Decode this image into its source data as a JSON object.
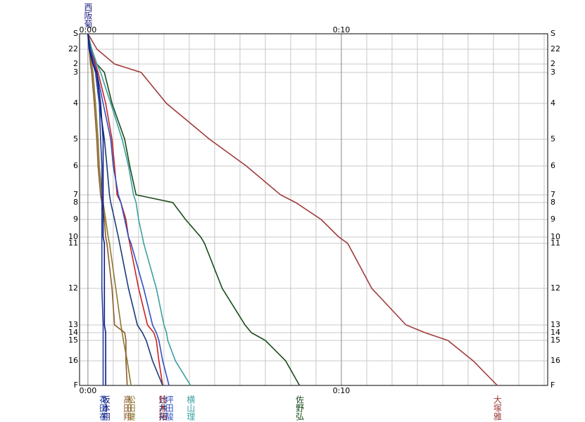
{
  "chart_data": {
    "type": "line",
    "leader": "西阪菊",
    "xlim": [
      -0.33,
      18.14
    ],
    "xticks": [
      {
        "value": 0,
        "label": "0:00"
      },
      {
        "value": 10,
        "label": "0:10"
      }
    ],
    "x_grid_step": 1,
    "ylim": [
      0,
      500
    ],
    "y_inverted": true,
    "yticks": [
      {
        "value": 0,
        "label": "S"
      },
      22,
      {
        "value": 43,
        "label": "2"
      },
      {
        "value": 55,
        "label": "3"
      },
      {
        "value": 99,
        "label": "4"
      },
      {
        "value": 150,
        "label": "5"
      },
      {
        "value": 188,
        "label": "6"
      },
      {
        "value": 229,
        "label": "7"
      },
      {
        "value": 240,
        "label": "8"
      },
      {
        "value": 264,
        "label": "9"
      },
      {
        "value": 289,
        "label": "10"
      },
      {
        "value": 298,
        "label": "11"
      },
      {
        "value": 362,
        "label": "12"
      },
      {
        "value": 414,
        "label": "13"
      },
      {
        "value": 425,
        "label": "14"
      },
      {
        "value": 436,
        "label": "15"
      },
      {
        "value": 465,
        "label": "16"
      },
      {
        "value": 500,
        "label": "F"
      }
    ],
    "grid": true,
    "series": [
      {
        "name": "大塚雅",
        "color": "#a03c3c",
        "values": [
          0,
          0.36,
          1.05,
          2.1,
          3.1,
          4.8,
          6.25,
          7.6,
          8.2,
          9.2,
          9.9,
          10.25,
          11.2,
          12.55,
          13.3,
          14.2,
          15.2,
          16.15
        ]
      },
      {
        "name": "佐野弘",
        "color": "#1a4a1a",
        "values": [
          0,
          0.15,
          0.35,
          0.65,
          0.95,
          1.45,
          1.65,
          1.9,
          3.35,
          3.85,
          4.45,
          4.6,
          5.3,
          6.2,
          6.45,
          7.0,
          7.8,
          8.35
        ]
      },
      {
        "name": "横山理",
        "color": "#3aa0a0",
        "values": [
          0,
          0.15,
          0.35,
          0.5,
          0.9,
          1.35,
          1.6,
          1.8,
          1.9,
          2.0,
          2.15,
          2.2,
          2.7,
          3.0,
          3.1,
          3.15,
          3.45,
          4.05
        ]
      },
      {
        "name": "鈴木翔",
        "color": "#cc2222",
        "values": [
          0,
          0.1,
          0.3,
          0.4,
          0.7,
          0.95,
          1.05,
          1.15,
          1.3,
          1.5,
          1.6,
          1.65,
          2.0,
          2.35,
          2.6,
          2.7,
          2.8,
          2.95
        ]
      },
      {
        "name": "坪田駿",
        "color": "#3050c0",
        "values": [
          0,
          0.1,
          0.25,
          0.35,
          0.6,
          0.9,
          1.0,
          1.2,
          1.3,
          1.45,
          1.6,
          1.7,
          2.2,
          2.55,
          2.7,
          2.8,
          2.95,
          3.2
        ]
      },
      {
        "name": "辻井拓",
        "color": "#1a3a7a",
        "values": [
          0,
          0.05,
          0.2,
          0.3,
          0.45,
          0.65,
          0.75,
          0.85,
          0.9,
          1.05,
          1.2,
          1.25,
          1.6,
          1.95,
          2.15,
          2.3,
          2.55,
          2.95
        ]
      },
      {
        "name": "松田健",
        "color": "#8a7a2a",
        "values": [
          0,
          0.05,
          0.15,
          0.2,
          0.3,
          0.4,
          0.45,
          0.55,
          0.6,
          0.7,
          0.8,
          0.85,
          1.1,
          1.3,
          1.35,
          1.4,
          1.55,
          1.7
        ]
      },
      {
        "name": "高田翔",
        "color": "#8b5a2b",
        "values": [
          0,
          0.05,
          0.1,
          0.15,
          0.25,
          0.35,
          0.4,
          0.5,
          0.55,
          0.65,
          0.7,
          0.75,
          0.95,
          1.05,
          1.45,
          1.5,
          1.5,
          1.55
        ]
      },
      {
        "name": "花田在",
        "color": "#2040a0",
        "values": [
          0,
          0.1,
          0.2,
          0.3,
          0.45,
          0.5,
          0.55,
          0.55,
          0.55,
          0.55,
          0.55,
          0.55,
          0.55,
          0.6,
          0.6,
          0.6,
          0.6,
          0.6
        ]
      },
      {
        "name": "坂本翔",
        "color": "#101a80",
        "values": [
          0,
          0.05,
          0.2,
          0.35,
          0.5,
          0.6,
          0.6,
          0.6,
          0.6,
          0.6,
          0.6,
          0.65,
          0.65,
          0.65,
          0.7,
          0.7,
          0.7,
          0.7
        ]
      }
    ]
  }
}
